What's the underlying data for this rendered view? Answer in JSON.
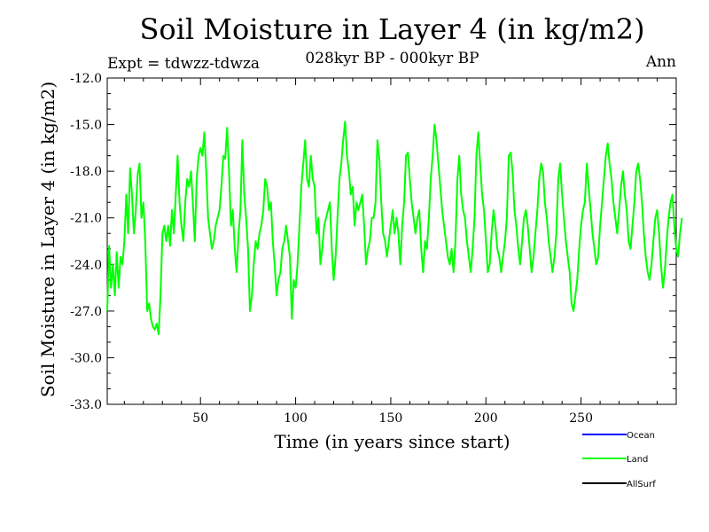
{
  "chart_data": {
    "type": "line",
    "title": "Soil Moisture in Layer 4 (in kg/m2)",
    "subtitle": "028kyr BP - 000kyr BP",
    "expt_label": "Expt = tdwzz-tdwza",
    "season_label": "Ann",
    "xlabel": "Time (in years since start)",
    "ylabel": "Soil Moisture in Layer 4 (in kg/m2)",
    "xlim": [
      1,
      300
    ],
    "ylim": [
      -33.0,
      -12.0
    ],
    "x_ticks": [
      50,
      100,
      150,
      200,
      250
    ],
    "y_ticks": [
      "-12.0",
      "-15.0",
      "-18.0",
      "-21.0",
      "-24.0",
      "-27.0",
      "-30.0",
      "-33.0"
    ],
    "legend": [
      {
        "name": "Ocean",
        "color": "#0000ff"
      },
      {
        "name": "Land",
        "color": "#00ff00"
      },
      {
        "name": "AllSurf",
        "color": "#000000"
      }
    ],
    "series": [
      {
        "name": "Land",
        "color": "#00ff00",
        "x_start": 1,
        "x_step": 1,
        "values": [
          -27.0,
          -22.8,
          -25.5,
          -24.0,
          -26.0,
          -23.2,
          -25.5,
          -23.5,
          -24.0,
          -22.5,
          -19.5,
          -22.0,
          -17.8,
          -19.5,
          -22.0,
          -20.5,
          -18.2,
          -17.5,
          -21.0,
          -20.0,
          -22.5,
          -27.0,
          -26.5,
          -27.5,
          -28.0,
          -28.2,
          -27.8,
          -28.5,
          -26.0,
          -22.0,
          -21.5,
          -22.5,
          -21.5,
          -22.8,
          -20.5,
          -22.0,
          -19.5,
          -17.0,
          -20.0,
          -21.5,
          -22.5,
          -20.0,
          -18.5,
          -19.0,
          -18.0,
          -20.0,
          -22.5,
          -18.5,
          -17.0,
          -16.5,
          -17.0,
          -15.5,
          -18.0,
          -21.0,
          -22.0,
          -23.0,
          -22.5,
          -21.5,
          -21.0,
          -20.5,
          -19.0,
          -17.0,
          -17.2,
          -15.2,
          -18.0,
          -21.5,
          -20.5,
          -23.0,
          -24.5,
          -22.0,
          -20.5,
          -16.0,
          -19.5,
          -21.0,
          -23.0,
          -27.0,
          -26.0,
          -24.0,
          -22.5,
          -23.0,
          -22.0,
          -21.5,
          -20.5,
          -18.5,
          -19.0,
          -20.5,
          -20.0,
          -22.5,
          -24.0,
          -26.0,
          -25.0,
          -24.5,
          -23.0,
          -22.5,
          -21.5,
          -22.5,
          -23.5,
          -27.5,
          -25.0,
          -25.5,
          -24.0,
          -21.5,
          -19.0,
          -17.5,
          -16.0,
          -18.5,
          -19.0,
          -17.0,
          -18.5,
          -19.0,
          -22.0,
          -21.0,
          -24.0,
          -23.0,
          -21.5,
          -21.0,
          -20.5,
          -20.0,
          -23.0,
          -25.0,
          -23.5,
          -21.0,
          -18.5,
          -17.5,
          -16.0,
          -14.8,
          -17.0,
          -18.0,
          -19.5,
          -19.0,
          -21.5,
          -20.0,
          -20.5,
          -20.0,
          -19.5,
          -21.5,
          -24.0,
          -23.0,
          -22.5,
          -21.0,
          -21.0,
          -20.0,
          -16.0,
          -17.2,
          -20.0,
          -22.0,
          -22.5,
          -23.5,
          -22.5,
          -21.5,
          -20.5,
          -22.0,
          -21.0,
          -22.0,
          -24.0,
          -21.5,
          -20.0,
          -17.0,
          -16.8,
          -18.5,
          -20.0,
          -21.0,
          -22.0,
          -21.0,
          -20.5,
          -23.0,
          -24.5,
          -22.5,
          -23.0,
          -21.0,
          -18.5,
          -17.0,
          -15.0,
          -16.0,
          -17.5,
          -19.0,
          -20.5,
          -21.5,
          -22.5,
          -23.5,
          -24.0,
          -23.0,
          -24.5,
          -22.5,
          -18.5,
          -17.0,
          -19.5,
          -20.5,
          -21.0,
          -22.5,
          -23.5,
          -24.5,
          -23.0,
          -21.0,
          -17.0,
          -15.5,
          -17.5,
          -19.5,
          -20.5,
          -22.5,
          -24.5,
          -24.0,
          -22.0,
          -20.5,
          -21.5,
          -23.0,
          -23.5,
          -24.5,
          -23.5,
          -22.5,
          -21.0,
          -17.0,
          -16.8,
          -18.0,
          -20.5,
          -21.5,
          -23.0,
          -24.0,
          -22.5,
          -21.0,
          -20.5,
          -21.5,
          -23.0,
          -24.5,
          -23.5,
          -22.0,
          -20.5,
          -18.5,
          -17.5,
          -18.0,
          -20.0,
          -21.0,
          -22.5,
          -23.5,
          -24.5,
          -23.5,
          -22.0,
          -18.5,
          -17.5,
          -19.5,
          -21.0,
          -22.5,
          -23.5,
          -24.5,
          -26.5,
          -27.0,
          -26.0,
          -25.0,
          -23.0,
          -21.5,
          -20.5,
          -20.0,
          -17.5,
          -19.0,
          -20.5,
          -22.0,
          -23.0,
          -24.0,
          -23.5,
          -21.5,
          -20.0,
          -18.5,
          -17.0,
          -16.2,
          -17.5,
          -18.5,
          -20.0,
          -21.0,
          -22.0,
          -20.5,
          -19.0,
          -18.0,
          -19.5,
          -20.5,
          -22.5,
          -23.0,
          -21.5,
          -20.0,
          -18.0,
          -17.5,
          -18.5,
          -20.0,
          -22.0,
          -23.5,
          -24.5,
          -25.0,
          -24.0,
          -22.5,
          -21.0,
          -20.5,
          -22.0,
          -24.0,
          -25.5,
          -24.5,
          -22.5,
          -21.0,
          -20.0,
          -19.5,
          -21.5,
          -23.0,
          -23.5,
          -22.0,
          -21.0
        ]
      }
    ]
  }
}
